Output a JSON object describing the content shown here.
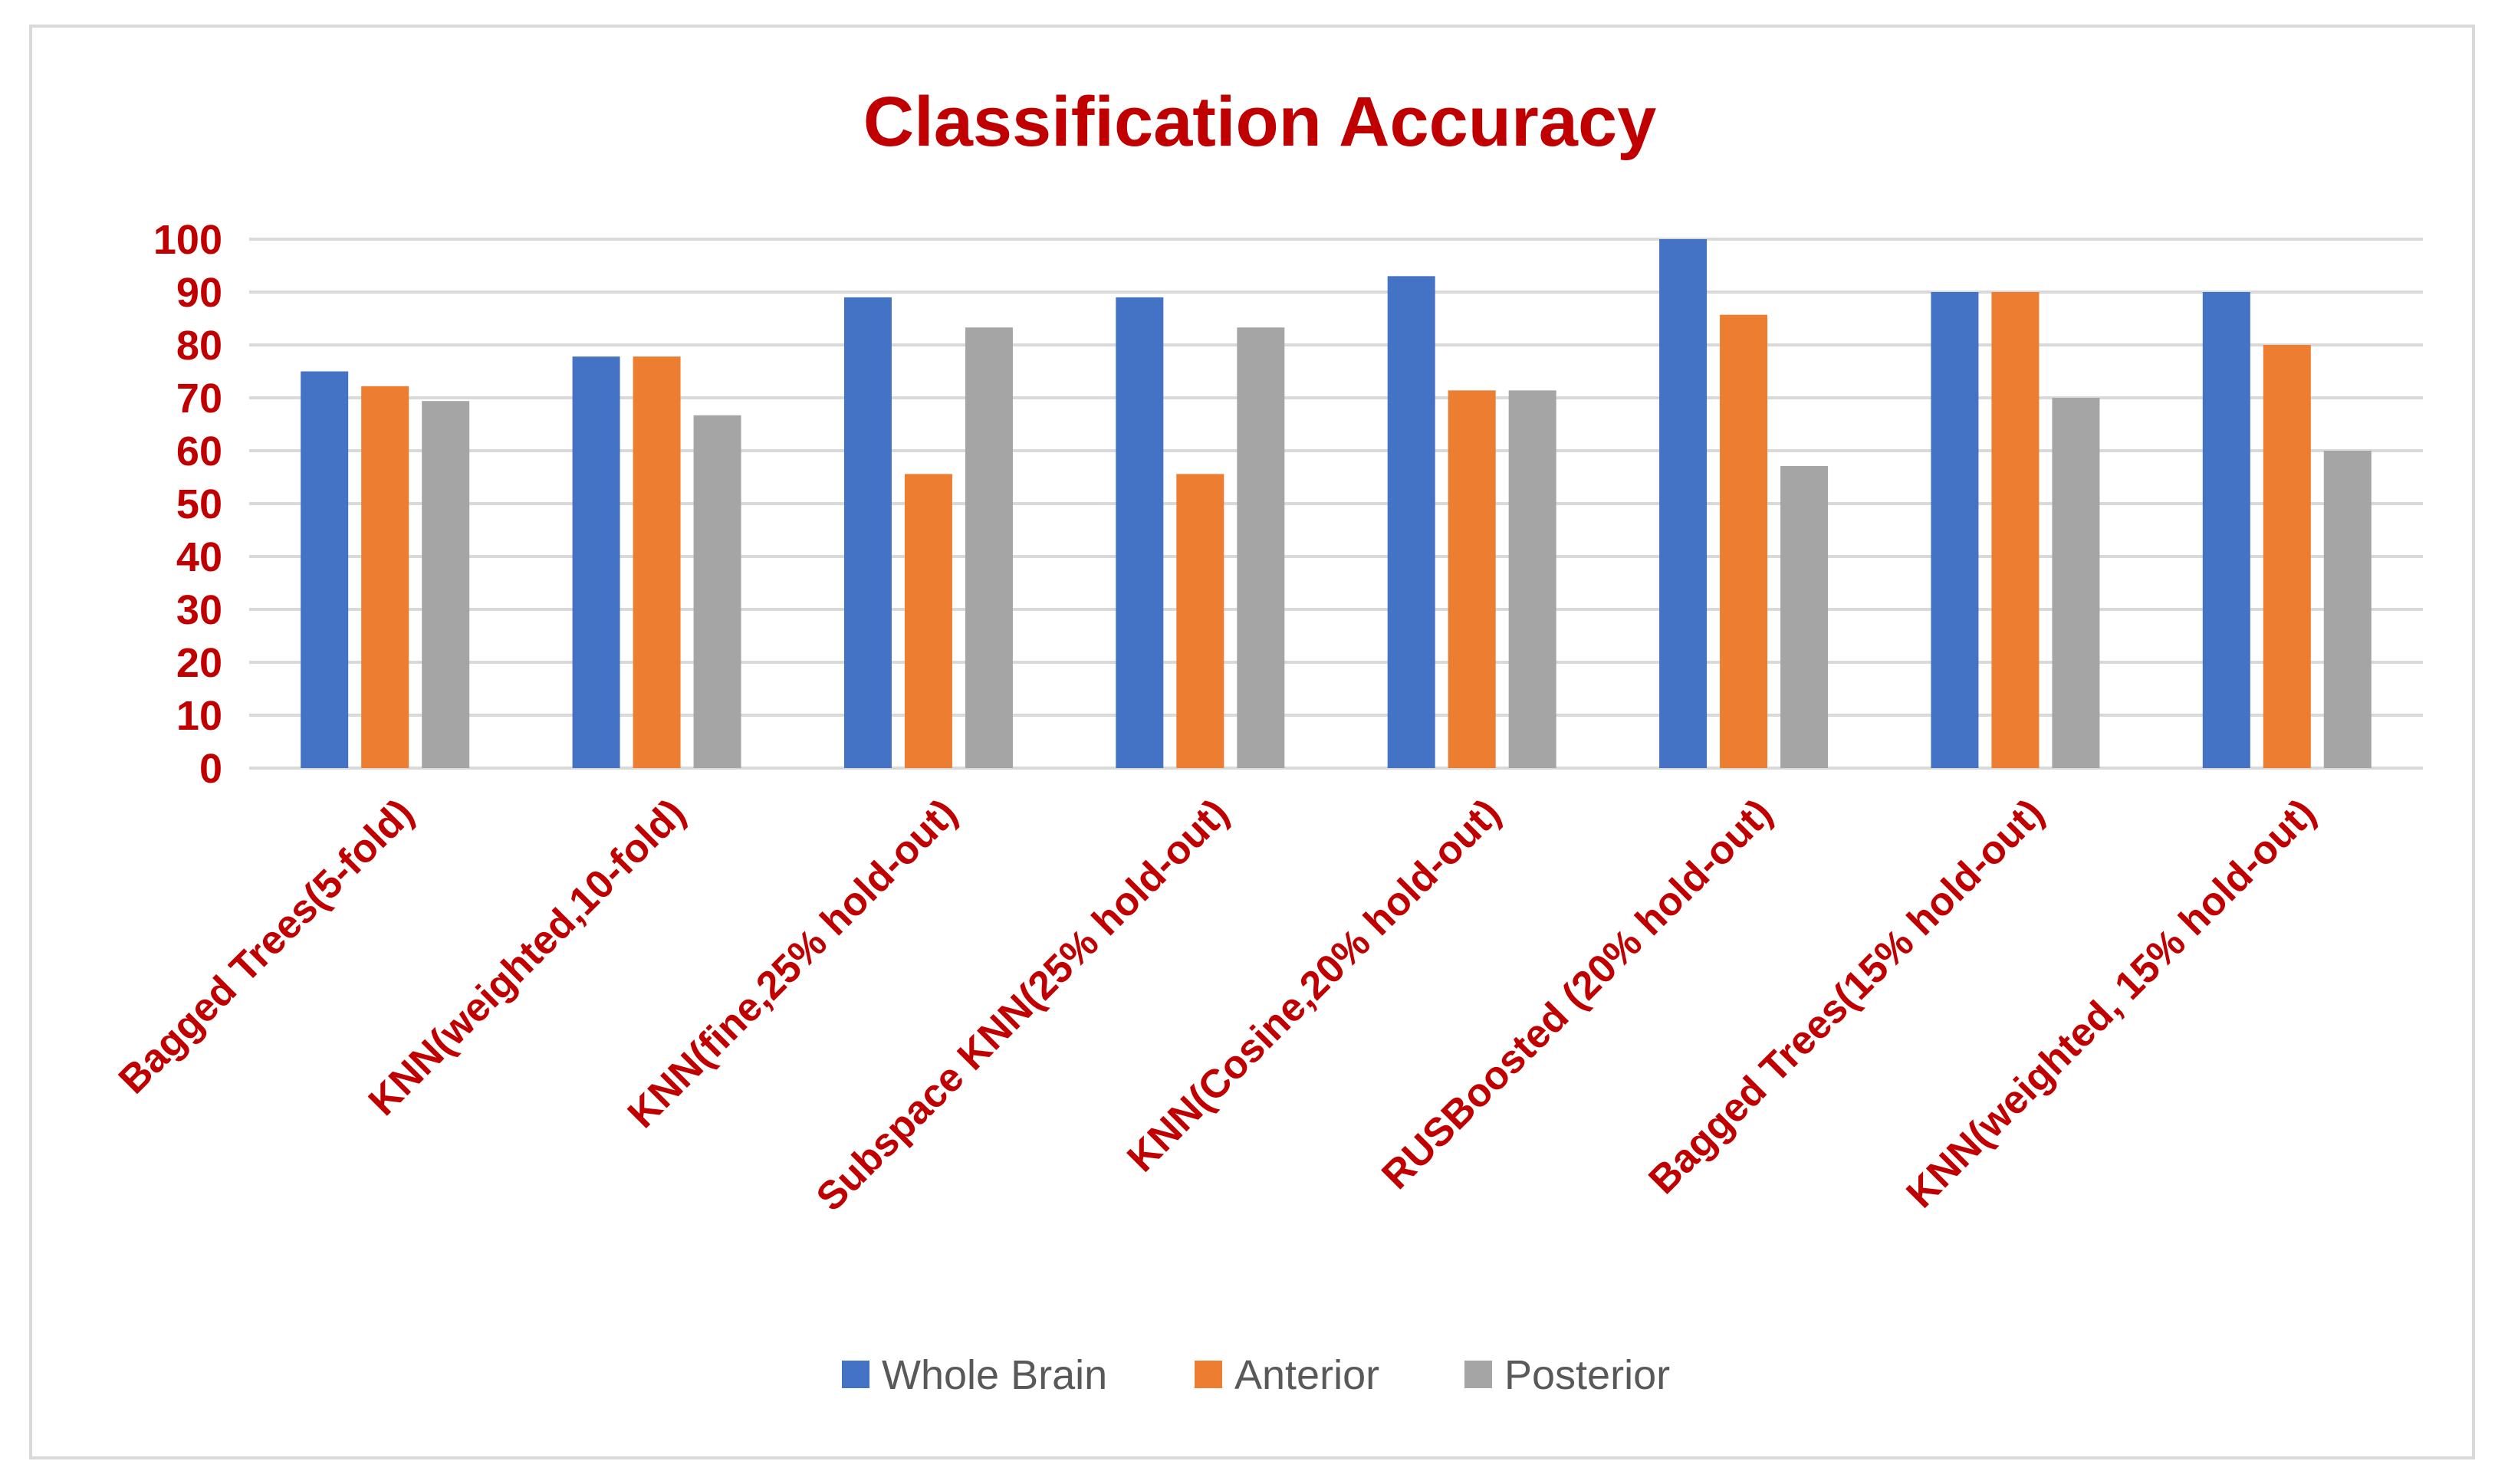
{
  "chart_data": {
    "type": "bar",
    "title": "Classification Accuracy",
    "xlabel": "",
    "ylabel": "",
    "ylim": [
      0,
      100
    ],
    "yticks": [
      0,
      10,
      20,
      30,
      40,
      50,
      60,
      70,
      80,
      90,
      100
    ],
    "grid": true,
    "legend_position": "bottom",
    "categories": [
      "Bagged Trees(5-fold)",
      "KNN(weighted,10-fold)",
      "KNN(fine,25% hold-out)",
      "Subspace KNN(25% hold-out)",
      "KNN(Cosine,20% hold-out)",
      "RUSBoosted (20% hold-out)",
      "Bagged Trees(15% hold-out)",
      "KNN(weighted, 15% hold-out)"
    ],
    "series": [
      {
        "name": "Whole Brain",
        "color": "#4472c4",
        "values": [
          75,
          77.8,
          89,
          89,
          93,
          100,
          90,
          90
        ]
      },
      {
        "name": "Anterior",
        "color": "#ed7d31",
        "values": [
          72.2,
          77.8,
          55.6,
          55.6,
          71.4,
          85.7,
          90,
          80
        ]
      },
      {
        "name": "Posterior",
        "color": "#a5a5a5",
        "values": [
          69.4,
          66.7,
          83.3,
          83.3,
          71.4,
          57.1,
          70,
          60
        ]
      }
    ]
  }
}
